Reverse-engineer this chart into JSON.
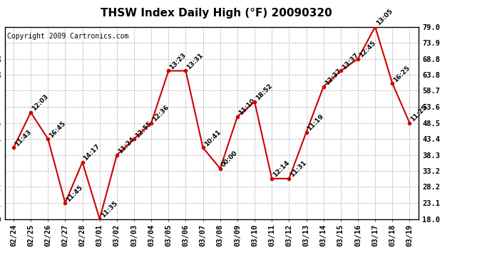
{
  "title": "THSW Index Daily High (°F) 20090320",
  "copyright": "Copyright 2009 Cartronics.com",
  "dates": [
    "02/24",
    "02/25",
    "02/26",
    "02/27",
    "02/28",
    "03/01",
    "03/02",
    "03/03",
    "03/04",
    "03/05",
    "03/06",
    "03/07",
    "03/08",
    "03/09",
    "03/10",
    "03/11",
    "03/12",
    "03/13",
    "03/14",
    "03/15",
    "03/16",
    "03/17",
    "03/18",
    "03/19"
  ],
  "values": [
    40.6,
    51.8,
    43.4,
    23.1,
    36.0,
    18.0,
    38.3,
    43.4,
    48.5,
    65.0,
    65.0,
    40.6,
    34.0,
    50.5,
    55.2,
    30.8,
    30.8,
    45.5,
    60.0,
    65.0,
    68.8,
    79.0,
    61.0,
    48.5
  ],
  "labels": [
    "11:43",
    "12:03",
    "16:45",
    "11:45",
    "14:17",
    "11:35",
    "11:24",
    "12:55",
    "12:36",
    "13:23",
    "13:31",
    "10:41",
    "00:00",
    "11:10",
    "18:52",
    "12:14",
    "11:31",
    "11:19",
    "12:37",
    "13:37",
    "12:45",
    "13:05",
    "16:25",
    "11:25"
  ],
  "yticks": [
    18.0,
    23.1,
    28.2,
    33.2,
    38.3,
    43.4,
    48.5,
    53.6,
    58.7,
    63.8,
    68.8,
    73.9,
    79.0
  ],
  "ymin": 18.0,
  "ymax": 79.0,
  "line_color": "#cc0000",
  "marker_color": "#cc0000",
  "bg_color": "#ffffff",
  "plot_bg_color": "#ffffff",
  "grid_color": "#aaaaaa",
  "title_fontsize": 11,
  "label_fontsize": 6.5,
  "tick_fontsize": 7.5,
  "copyright_fontsize": 7
}
